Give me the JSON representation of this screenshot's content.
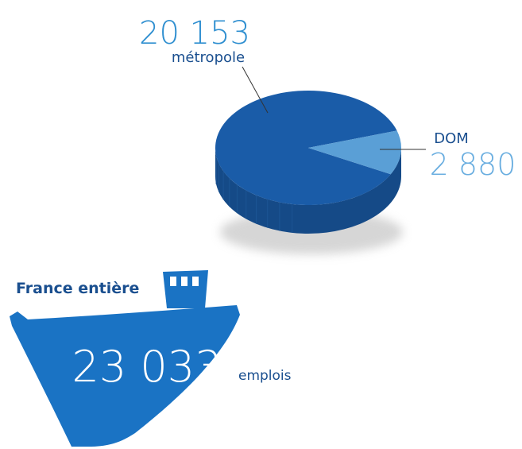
{
  "chart_data": {
    "type": "pie",
    "categories": [
      "métropole",
      "DOM"
    ],
    "values": [
      20153,
      2880
    ],
    "value_labels": [
      "20 153",
      "2 880"
    ],
    "colors": [
      "#1a5ca8",
      "#5a9fd6"
    ]
  },
  "summary": {
    "title": "France entière",
    "value": "23 033",
    "unit": "emplois"
  }
}
